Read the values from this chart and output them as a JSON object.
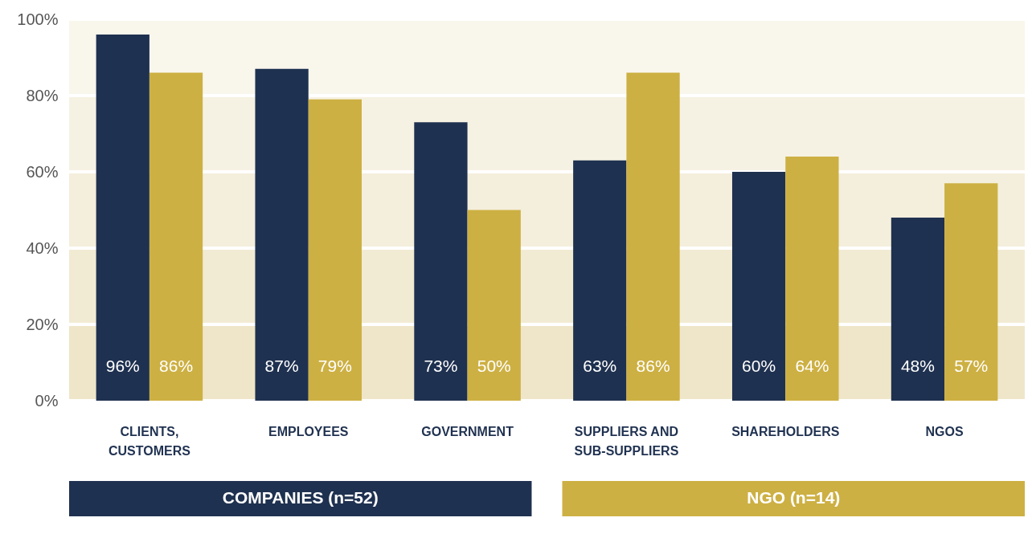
{
  "chart_data": {
    "type": "bar",
    "categories": [
      "CLIENTS, CUSTOMERS",
      "EMPLOYEES",
      "GOVERNMENT",
      "SUPPLIERS AND SUB-SUPPLIERS",
      "SHAREHOLDERS",
      "NGOS"
    ],
    "series": [
      {
        "name": "COMPANIES (n=52)",
        "color": "#1f3150",
        "values": [
          96,
          87,
          73,
          63,
          60,
          48
        ],
        "value_labels": [
          "96%",
          "87%",
          "73%",
          "63%",
          "60%",
          "48%"
        ]
      },
      {
        "name": "NGO (n=14)",
        "color": "#cdb043",
        "values": [
          86,
          79,
          50,
          86,
          64,
          57
        ],
        "value_labels": [
          "86%",
          "79%",
          "50%",
          "86%",
          "64%",
          "57%"
        ]
      }
    ],
    "ylim": [
      0,
      100
    ],
    "yticks": [
      {
        "value": 0,
        "label": "0%"
      },
      {
        "value": 20,
        "label": "20%"
      },
      {
        "value": 40,
        "label": "40%"
      },
      {
        "value": 60,
        "label": "60%"
      },
      {
        "value": 80,
        "label": "80%"
      },
      {
        "value": 100,
        "label": "100%"
      }
    ],
    "bands": [
      {
        "axis": "y",
        "from": 0,
        "to": 20,
        "color": "#efe6c9"
      },
      {
        "axis": "y",
        "from": 20,
        "to": 40,
        "color": "#f2ebd3"
      },
      {
        "axis": "y",
        "from": 40,
        "to": 60,
        "color": "#f4eedc"
      },
      {
        "axis": "y",
        "from": 60,
        "to": 80,
        "color": "#f6f2e3"
      },
      {
        "axis": "y",
        "from": 80,
        "to": 100,
        "color": "#f9f6ec"
      }
    ],
    "grid": "y",
    "legend": "bottom"
  }
}
